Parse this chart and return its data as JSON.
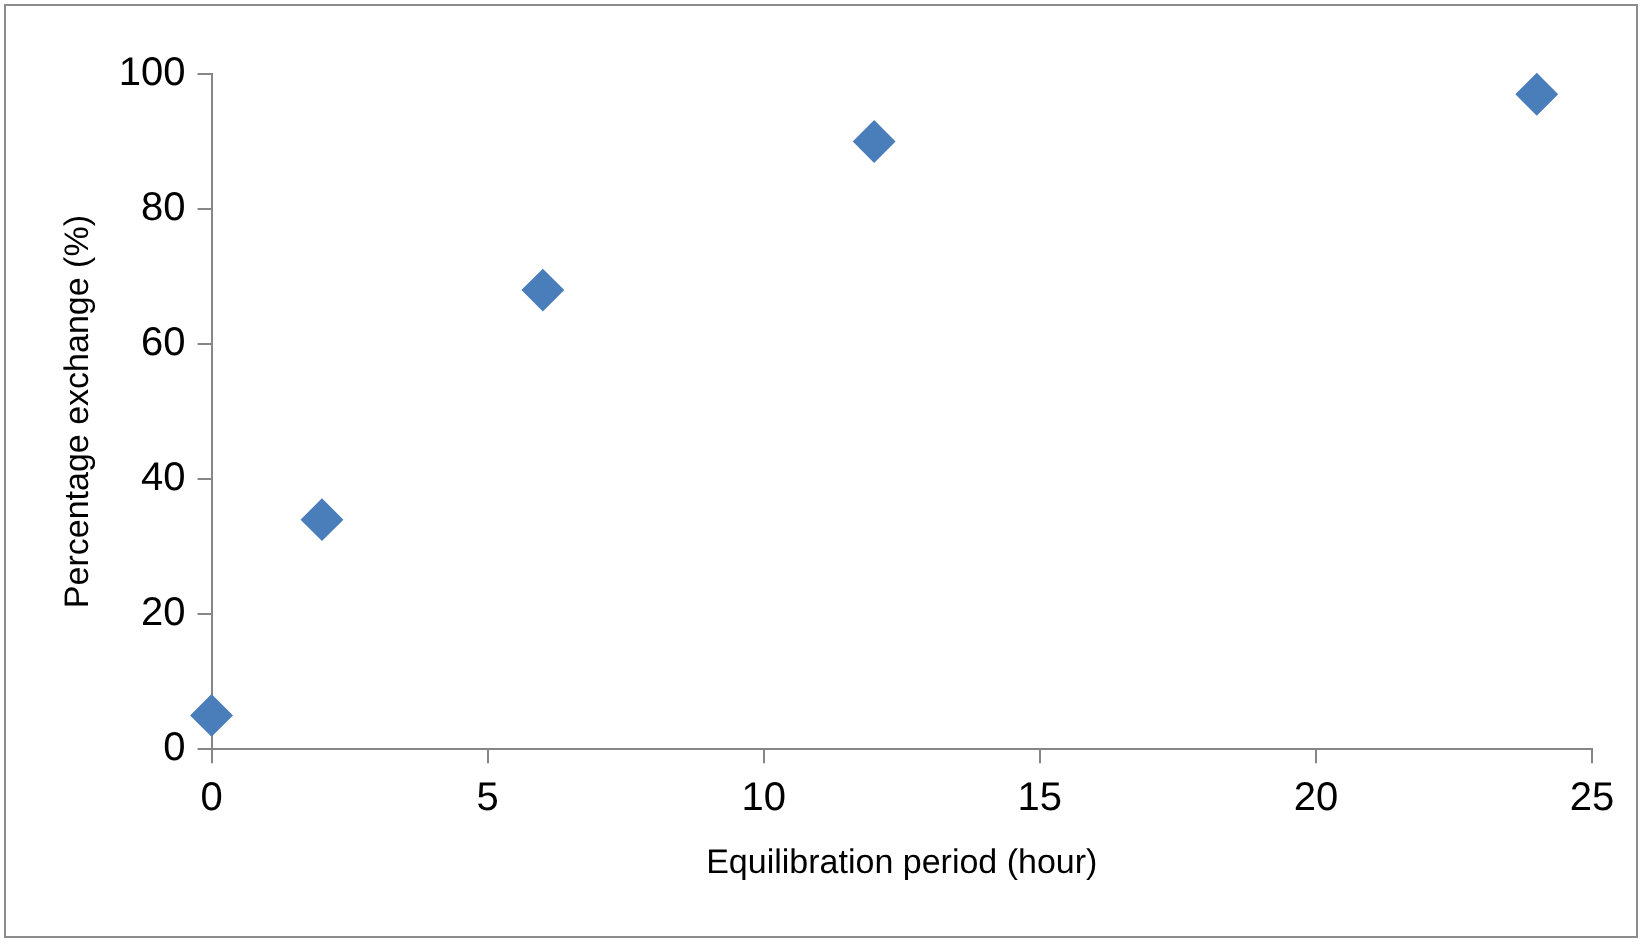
{
  "chart_data": {
    "type": "scatter",
    "xlabel": "Equilibration period (hour)",
    "ylabel": "Percentage exchange (%)",
    "x": [
      0,
      2,
      6,
      12,
      24
    ],
    "series": [
      {
        "color": "#4a7ebb",
        "values": [
          5,
          34,
          68,
          90,
          97
        ]
      }
    ],
    "xlim": [
      0,
      25
    ],
    "xticks": [
      0,
      5,
      10,
      15,
      20,
      25
    ],
    "ylim": [
      0,
      100
    ],
    "yticks": [
      0,
      20,
      40,
      60,
      80,
      100
    ],
    "marker": "diamond",
    "legend": false
  }
}
